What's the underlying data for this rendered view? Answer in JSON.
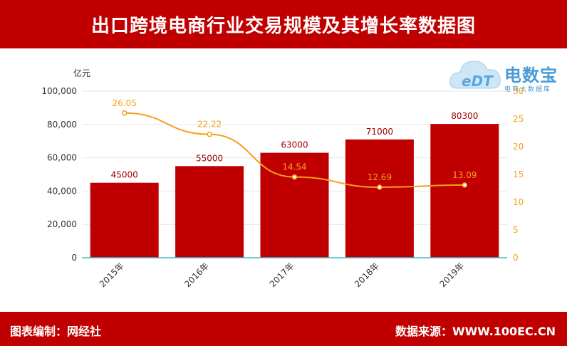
{
  "header": {
    "title": "出口跨境电商行业交易规模及其增长率数据图"
  },
  "footer": {
    "left": "图表编制：网经社",
    "right": "数据来源：WWW.100EC.CN"
  },
  "logo": {
    "mark": "eDT",
    "brand": "电数宝",
    "sub": "电商大数据库"
  },
  "colors": {
    "banner": "#c00000",
    "bar": "#c00000",
    "line": "#f5a01a",
    "axis_teal": "#3bb8c8"
  },
  "chart_data": {
    "type": "bar",
    "categories": [
      "2015年",
      "2016年",
      "2017年",
      "2018年",
      "2019年"
    ],
    "y_unit_label": "亿元",
    "ylim": [
      0,
      100000
    ],
    "y_ticks": [
      "0",
      "20,000",
      "40,000",
      "60,000",
      "80,000",
      "100,000"
    ],
    "y_tick_values": [
      0,
      20000,
      40000,
      60000,
      80000,
      100000
    ],
    "y2lim": [
      0,
      30
    ],
    "y2_ticks": [
      "0",
      "5",
      "10",
      "15",
      "20",
      "25",
      "30"
    ],
    "y2_tick_values": [
      0,
      5,
      10,
      15,
      20,
      25,
      30
    ],
    "series": [
      {
        "type": "bar",
        "values": [
          45000,
          55000,
          63000,
          71000,
          80300
        ],
        "labels": [
          "45000",
          "55000",
          "63000",
          "71000",
          "80300"
        ]
      },
      {
        "type": "line",
        "axis": "right",
        "values": [
          26.05,
          22.22,
          14.54,
          12.69,
          13.09
        ],
        "labels": [
          "26.05",
          "22.22",
          "14.54",
          "12.69",
          "13.09"
        ]
      }
    ],
    "grid": true,
    "legend": "none"
  }
}
